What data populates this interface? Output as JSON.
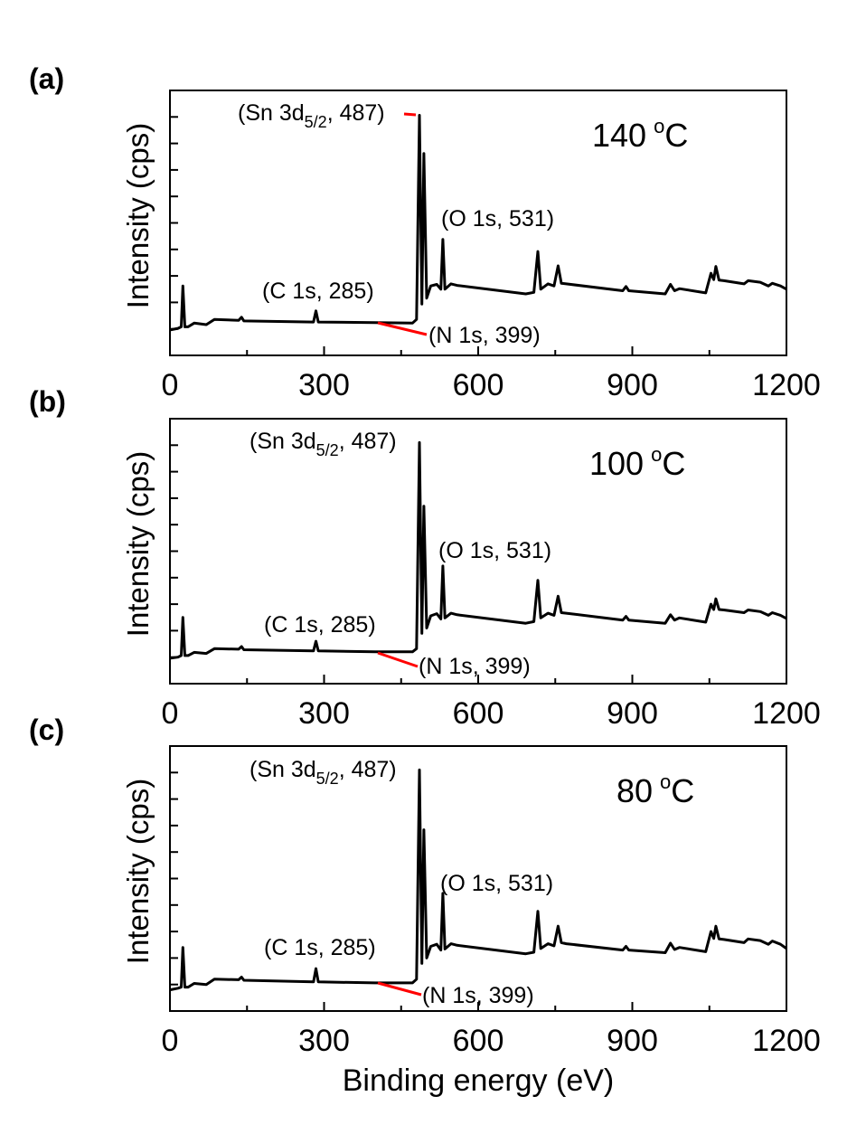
{
  "chart_data": [
    {
      "type": "line",
      "panel_label": "(a)",
      "temperature": "140",
      "temperature_unit_sup": "o",
      "temperature_unit": "C",
      "xlabel": "",
      "ylabel": "Intensity (cps)",
      "xlim": [
        0,
        1200
      ],
      "ylim": [
        0.5,
        5.5
      ],
      "xticks": [
        "0",
        "300",
        "600",
        "900",
        "1200"
      ],
      "y_tick_labels_shown": false,
      "line_color": "#000000",
      "leader_color": "#ff0000",
      "annotations": [
        {
          "id": "sn",
          "text": "(Sn 3d",
          "sub": "5/2",
          "after": ", 487)"
        },
        {
          "id": "o",
          "text": "(O 1s, 531)"
        },
        {
          "id": "c",
          "text": "(C 1s, 285)"
        },
        {
          "id": "n",
          "text": "(N 1s, 399)"
        }
      ],
      "x": [
        0,
        15.7,
        22,
        25.2,
        29,
        35.4,
        47.2,
        70.8,
        86.6,
        133.8,
        139.3,
        144,
        279.4,
        284.1,
        288.8,
        399,
        472,
        480,
        485.6,
        490.3,
        494.2,
        499.7,
        507.6,
        519.4,
        527.3,
        531.2,
        535.2,
        547,
        558.8,
        692.6,
        708.3,
        716.2,
        721.7,
        735.8,
        747.7,
        755.5,
        761.8,
        771.3,
        881.4,
        887.7,
        893.2,
        964.1,
        974.3,
        982.2,
        991.6,
        1042.8,
        1053,
        1058.5,
        1062.5,
        1068.7,
        1078.2,
        1117.5,
        1125.4,
        1149,
        1164.8,
        1172.6,
        1188.4,
        1200
      ],
      "y": [
        0.98,
        1.01,
        1.04,
        1.81,
        1.04,
        1.04,
        1.11,
        1.08,
        1.18,
        1.16,
        1.22,
        1.15,
        1.13,
        1.34,
        1.13,
        1.12,
        1.11,
        1.18,
        5.03,
        1.47,
        4.31,
        1.58,
        1.81,
        1.84,
        1.75,
        2.69,
        1.75,
        1.85,
        1.82,
        1.66,
        1.69,
        2.46,
        1.75,
        1.85,
        1.81,
        2.19,
        1.86,
        1.85,
        1.72,
        1.8,
        1.72,
        1.66,
        1.84,
        1.72,
        1.76,
        1.68,
        2.05,
        1.93,
        2.18,
        1.92,
        1.91,
        1.85,
        1.91,
        1.88,
        1.81,
        1.86,
        1.81,
        1.75
      ]
    },
    {
      "type": "line",
      "panel_label": "(b)",
      "temperature": "100",
      "temperature_unit_sup": "o",
      "temperature_unit": "C",
      "xlabel": "",
      "ylabel": "Intensity (cps)",
      "xlim": [
        0,
        1200
      ],
      "ylim": [
        0.5,
        5.5
      ],
      "xticks": [
        "0",
        "300",
        "600",
        "900",
        "1200"
      ],
      "y_tick_labels_shown": false,
      "line_color": "#000000",
      "leader_color": "#ff0000",
      "annotations": [
        {
          "id": "sn",
          "text": "(Sn 3d",
          "sub": "5/2",
          "after": ", 487)"
        },
        {
          "id": "o",
          "text": "(O 1s, 531)"
        },
        {
          "id": "c",
          "text": "(C 1s, 285)"
        },
        {
          "id": "n",
          "text": "(N 1s, 399)"
        }
      ],
      "x": [
        0,
        15.7,
        22,
        25.2,
        29,
        35.4,
        47.2,
        70.8,
        86.6,
        133.8,
        139.3,
        144,
        279.4,
        284.1,
        288.8,
        399,
        472,
        480,
        485.6,
        490.3,
        494.2,
        499.7,
        507.6,
        519.4,
        527.3,
        531.2,
        535.2,
        547,
        558.8,
        692.6,
        708.3,
        716.2,
        721.7,
        735.8,
        747.7,
        755.5,
        761.8,
        771.3,
        881.4,
        887.7,
        893.2,
        964.1,
        974.3,
        982.2,
        991.6,
        1042.8,
        1053,
        1058.5,
        1062.5,
        1068.7,
        1078.2,
        1117.5,
        1125.4,
        1149,
        1164.8,
        1172.6,
        1188.4,
        1200
      ],
      "y": [
        0.98,
        1.0,
        1.03,
        1.75,
        1.03,
        1.03,
        1.09,
        1.07,
        1.16,
        1.15,
        1.2,
        1.14,
        1.12,
        1.3,
        1.12,
        1.1,
        1.1,
        1.16,
        5.05,
        1.45,
        3.85,
        1.55,
        1.78,
        1.82,
        1.72,
        2.72,
        1.74,
        1.83,
        1.8,
        1.64,
        1.67,
        2.45,
        1.74,
        1.83,
        1.79,
        2.15,
        1.84,
        1.83,
        1.7,
        1.77,
        1.7,
        1.64,
        1.8,
        1.7,
        1.74,
        1.66,
        2.0,
        1.9,
        2.1,
        1.9,
        1.89,
        1.84,
        1.89,
        1.86,
        1.79,
        1.84,
        1.79,
        1.73
      ]
    },
    {
      "type": "line",
      "panel_label": "(c)",
      "temperature": "80",
      "temperature_unit_sup": "o",
      "temperature_unit": "C",
      "xlabel": "Binding energy (eV)",
      "ylabel": "Intensity (cps)",
      "xlim": [
        0,
        1200
      ],
      "ylim": [
        0.5,
        5.5
      ],
      "xticks": [
        "0",
        "300",
        "600",
        "900",
        "1200"
      ],
      "y_tick_labels_shown": false,
      "line_color": "#000000",
      "leader_color": "#ff0000",
      "annotations": [
        {
          "id": "sn",
          "text": "(Sn 3d",
          "sub": "5/2",
          "after": ", 487)"
        },
        {
          "id": "o",
          "text": "(O 1s, 531)"
        },
        {
          "id": "c",
          "text": "(C 1s, 285)"
        },
        {
          "id": "n",
          "text": "(N 1s, 399)"
        }
      ],
      "x": [
        0,
        15.7,
        22,
        25.2,
        29,
        35.4,
        47.2,
        70.8,
        86.6,
        133.8,
        139.3,
        144,
        279.4,
        284.1,
        288.8,
        399,
        472,
        480,
        485.6,
        490.3,
        494.2,
        499.7,
        507.6,
        519.4,
        527.3,
        531.2,
        535.2,
        547,
        558.8,
        692.6,
        708.3,
        716.2,
        721.7,
        735.8,
        747.7,
        755.5,
        761.8,
        771.3,
        881.4,
        887.7,
        893.2,
        964.1,
        974.3,
        982.2,
        991.6,
        1042.8,
        1053,
        1058.5,
        1062.5,
        1068.7,
        1078.2,
        1117.5,
        1125.4,
        1149,
        1164.8,
        1172.6,
        1188.4,
        1200
      ],
      "y": [
        0.9,
        0.93,
        0.95,
        1.7,
        0.95,
        0.95,
        1.02,
        1.0,
        1.1,
        1.09,
        1.14,
        1.08,
        1.05,
        1.3,
        1.05,
        1.03,
        1.03,
        1.1,
        5.05,
        1.4,
        3.92,
        1.5,
        1.72,
        1.76,
        1.65,
        2.72,
        1.67,
        1.77,
        1.74,
        1.58,
        1.61,
        2.38,
        1.68,
        1.77,
        1.73,
        2.1,
        1.79,
        1.77,
        1.65,
        1.72,
        1.65,
        1.6,
        1.78,
        1.66,
        1.7,
        1.62,
        2.0,
        1.87,
        2.1,
        1.86,
        1.85,
        1.79,
        1.86,
        1.83,
        1.76,
        1.82,
        1.76,
        1.68
      ]
    }
  ]
}
